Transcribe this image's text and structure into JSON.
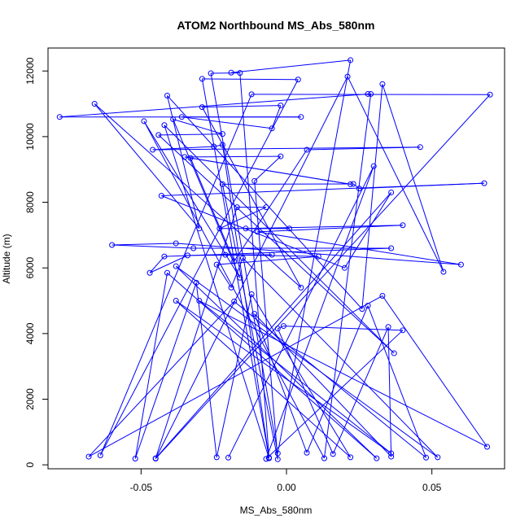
{
  "chart_data": {
    "type": "line",
    "title": "ATOM2 Northbound MS_Abs_580nm",
    "xlabel": "MS_Abs_580nm",
    "ylabel": "Altitude (m)",
    "xlim": [
      -0.082,
      0.075
    ],
    "ylim": [
      -120,
      12700
    ],
    "x_ticks": [
      -0.05,
      0.0,
      0.05
    ],
    "x_tick_labels": [
      "-0.05",
      "0.00",
      "0.05"
    ],
    "y_ticks": [
      0,
      2000,
      4000,
      6000,
      8000,
      10000,
      12000
    ],
    "y_tick_labels": [
      "0",
      "2000",
      "4000",
      "6000",
      "8000",
      "10000",
      "12000"
    ],
    "grid": false,
    "legend": "none",
    "series": [
      {
        "color": "#0000ff",
        "marker": "open-circle",
        "points": [
          [
            -0.019,
            11950
          ],
          [
            0.022,
            12330
          ],
          [
            -0.003,
            350
          ],
          [
            -0.026,
            11930
          ],
          [
            -0.016,
            11940
          ],
          [
            -0.006,
            220
          ],
          [
            -0.029,
            11760
          ],
          [
            0.004,
            11740
          ],
          [
            -0.064,
            290
          ],
          [
            -0.012,
            11290
          ],
          [
            0.07,
            11280
          ],
          [
            -0.045,
            190
          ],
          [
            0.021,
            11830
          ],
          [
            0.054,
            5880
          ],
          [
            0.033,
            11600
          ],
          [
            0.026,
            4750
          ],
          [
            -0.041,
            11250
          ],
          [
            -0.03,
            7200
          ],
          [
            -0.066,
            11000
          ],
          [
            0.005,
            5400
          ],
          [
            -0.029,
            10900
          ],
          [
            -0.002,
            10950
          ],
          [
            -0.005,
            10250
          ],
          [
            -0.036,
            10600
          ],
          [
            0.005,
            10600
          ],
          [
            -0.078,
            10600
          ],
          [
            0.028,
            11300
          ],
          [
            0.029,
            11300
          ],
          [
            0.013,
            200
          ],
          [
            -0.049,
            10470
          ],
          [
            -0.016,
            5700
          ],
          [
            -0.039,
            10530
          ],
          [
            -0.022,
            10080
          ],
          [
            -0.044,
            10050
          ],
          [
            0.037,
            3400
          ],
          [
            -0.042,
            10350
          ],
          [
            -0.006,
            200
          ],
          [
            -0.022,
            9750
          ],
          [
            -0.025,
            9700
          ],
          [
            -0.046,
            9600
          ],
          [
            0.046,
            9680
          ],
          [
            0.007,
            9600
          ],
          [
            -0.018,
            6200
          ],
          [
            -0.033,
            9350
          ],
          [
            0.022,
            8550
          ],
          [
            -0.035,
            9380
          ],
          [
            -0.002,
            9400
          ],
          [
            -0.011,
            8650
          ],
          [
            -0.003,
            170
          ],
          [
            -0.022,
            8550
          ],
          [
            0.023,
            8560
          ],
          [
            0.025,
            8420
          ],
          [
            0.068,
            8580
          ],
          [
            -0.043,
            8200
          ],
          [
            0.02,
            6000
          ],
          [
            0.036,
            8300
          ],
          [
            -0.045,
            200
          ],
          [
            -0.017,
            7850
          ],
          [
            -0.007,
            7850
          ],
          [
            -0.023,
            7200
          ],
          [
            0.001,
            7200
          ],
          [
            -0.014,
            7200
          ],
          [
            0.04,
            7300
          ],
          [
            -0.01,
            7100
          ],
          [
            0.06,
            6100
          ],
          [
            -0.038,
            6750
          ],
          [
            -0.06,
            6700
          ],
          [
            -0.032,
            6600
          ],
          [
            0.036,
            6600
          ],
          [
            -0.042,
            6350
          ],
          [
            -0.047,
            5850
          ],
          [
            -0.034,
            6380
          ],
          [
            -0.005,
            6400
          ],
          [
            -0.021,
            6400
          ],
          [
            0.011,
            6350
          ],
          [
            -0.024,
            6100
          ],
          [
            -0.019,
            5400
          ],
          [
            -0.015,
            6300
          ],
          [
            0.052,
            230
          ],
          [
            -0.038,
            6050
          ],
          [
            0.031,
            200
          ],
          [
            -0.041,
            5850
          ],
          [
            -0.052,
            190
          ],
          [
            -0.031,
            5550
          ],
          [
            -0.024,
            230
          ],
          [
            -0.012,
            5200
          ],
          [
            0.022,
            230
          ],
          [
            -0.038,
            5000
          ],
          [
            0.036,
            350
          ],
          [
            -0.03,
            5000
          ],
          [
            0.069,
            550
          ],
          [
            0.033,
            5150
          ],
          [
            -0.068,
            250
          ],
          [
            -0.018,
            4980
          ],
          [
            0.048,
            220
          ],
          [
            0.028,
            4850
          ],
          [
            0.007,
            370
          ],
          [
            -0.011,
            4600
          ],
          [
            0.036,
            250
          ],
          [
            0.035,
            4200
          ],
          [
            0.016,
            330
          ],
          [
            -0.003,
            4150
          ],
          [
            -0.001,
            4230
          ],
          [
            0.04,
            4100
          ],
          [
            -0.007,
            180
          ],
          [
            0.03,
            9100
          ],
          [
            -0.02,
            220
          ]
        ]
      }
    ]
  }
}
